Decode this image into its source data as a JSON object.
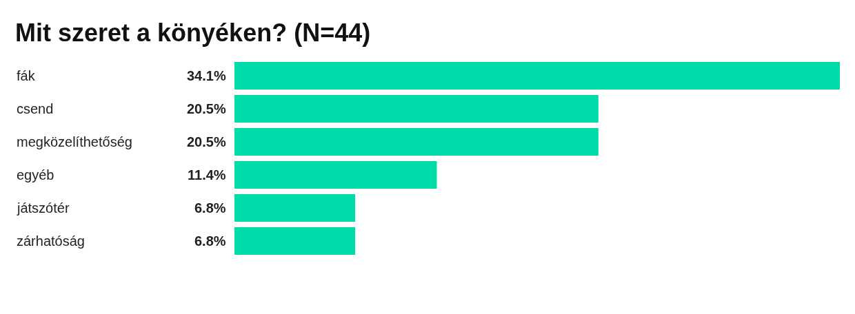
{
  "chart_data": {
    "type": "bar",
    "orientation": "horizontal",
    "title": "Mit szeret a könyéken? (N=44)",
    "categories": [
      "fák",
      "csend",
      "megközelíthetőség",
      "egyéb",
      "játszótér",
      "zárhatóság"
    ],
    "values": [
      34.1,
      20.5,
      20.5,
      11.4,
      6.8,
      6.8
    ],
    "value_labels": [
      "34.1%",
      "20.5%",
      "20.5%",
      "11.4%",
      "6.8%",
      "6.8%"
    ],
    "color": "#00dca9"
  }
}
